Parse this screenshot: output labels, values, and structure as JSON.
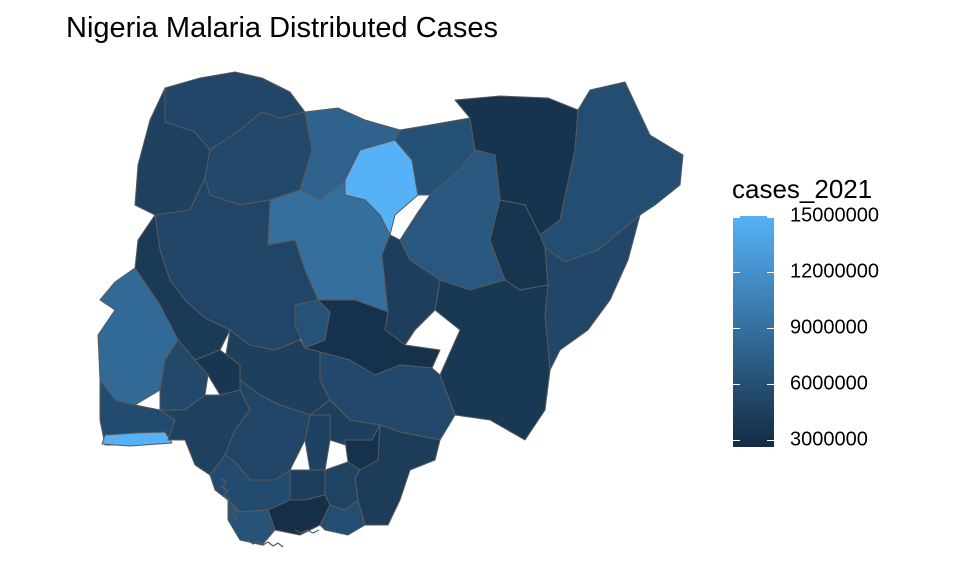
{
  "title": "Nigeria Malaria Distributed Cases",
  "legend": {
    "title": "cases_2021",
    "scale_low_color": "#132B43",
    "scale_high_color": "#56B1F7",
    "range": [
      2600000,
      15000000
    ],
    "ticks": [
      {
        "value": 15000000,
        "label": "15000000"
      },
      {
        "value": 12000000,
        "label": "12000000"
      },
      {
        "value": 9000000,
        "label": "9000000"
      },
      {
        "value": 6000000,
        "label": "6000000"
      },
      {
        "value": 3000000,
        "label": "3000000"
      }
    ]
  },
  "map": {
    "country": "Nigeria",
    "border_color": "#595959",
    "approx_state_values": {
      "Sokoto": 5100000,
      "Zamfara": 5300000,
      "Kebbi": 4600000,
      "Katsina": 7700000,
      "Kano": 15000000,
      "Jigawa": 6100000,
      "Yobe": 3400000,
      "Borno": 5800000,
      "Kaduna": 8900000,
      "Bauchi": 6700000,
      "Gombe": 3500000,
      "Adamawa": 5100000,
      "Niger": 5000000,
      "Kwara": 4000000,
      "Oyo": 8400000,
      "Ogun": 5600000,
      "Lagos": 15000000,
      "FCT": 6200000,
      "Nasarawa": 3200000,
      "Plateau": 4400000,
      "Taraba": 3800000,
      "Kogi": 4500000,
      "Benue": 5400000,
      "Osun": 5300000,
      "Ekiti": 3600000,
      "Ondo": 4600000,
      "Edo": 5000000,
      "Enugu": 4500000,
      "Ebonyi": 3200000,
      "Cross River": 4200000,
      "Anambra": 4700000,
      "Imo": 4400000,
      "Abia": 4800000,
      "Delta": 5600000,
      "Rivers": 3000000,
      "Bayelsa": 6300000,
      "Akwa Ibom": 5800000
    }
  }
}
